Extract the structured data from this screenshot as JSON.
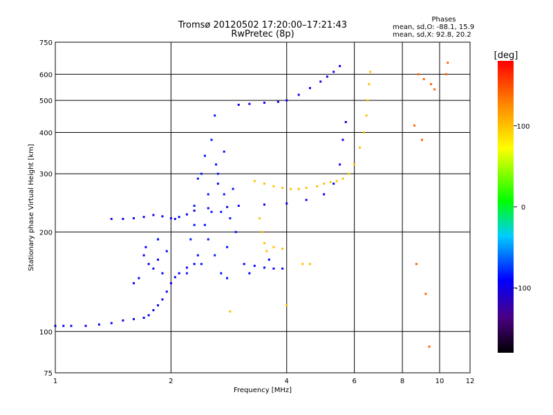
{
  "header": {
    "title_line1": "Tromsø 20120502 17:20:00–17:21:43",
    "title_line2": "RwPretec (8p)"
  },
  "stats": {
    "heading": "Phases",
    "line1": "mean, sd,O: -88.1, 15.9",
    "line2": "mean, sd,X:  92.8, 20.2"
  },
  "chart_data": {
    "type": "scatter",
    "title": "Tromsø 20120502 17:20:00–17:21:43",
    "subtitle": "RwPretec (8p)",
    "xlabel": "Frequency [MHz]",
    "ylabel": "Stationary phase Virtual Height [km]",
    "xscale": "log",
    "yscale": "log",
    "xlim": [
      1,
      12
    ],
    "ylim": [
      75,
      750
    ],
    "x_ticks": [
      1,
      2,
      4,
      6,
      8,
      10,
      12
    ],
    "y_ticks": [
      75,
      100,
      200,
      300,
      400,
      500,
      600,
      750
    ],
    "grid": true,
    "colorbar": {
      "label": "[deg]",
      "range": [
        -180,
        180
      ],
      "ticks": [
        100,
        0,
        -100
      ]
    },
    "series": [
      {
        "phase": -95,
        "points": [
          [
            1.0,
            104
          ],
          [
            1.05,
            104
          ],
          [
            1.1,
            104
          ],
          [
            1.2,
            104
          ],
          [
            1.3,
            105
          ],
          [
            1.4,
            106
          ],
          [
            1.5,
            108
          ],
          [
            1.6,
            109
          ],
          [
            1.7,
            110
          ],
          [
            1.75,
            112
          ],
          [
            1.8,
            116
          ],
          [
            1.85,
            120
          ],
          [
            1.9,
            125
          ],
          [
            1.95,
            132
          ],
          [
            2.0,
            140
          ],
          [
            2.05,
            146
          ],
          [
            2.1,
            150
          ],
          [
            2.2,
            156
          ],
          [
            2.3,
            160
          ]
        ]
      },
      {
        "phase": -95,
        "points": [
          [
            1.4,
            219
          ],
          [
            1.5,
            219
          ],
          [
            1.6,
            220
          ],
          [
            1.7,
            222
          ],
          [
            1.8,
            225
          ],
          [
            1.9,
            223
          ],
          [
            2.0,
            220
          ],
          [
            2.05,
            219
          ],
          [
            2.1,
            222
          ],
          [
            2.2,
            226
          ],
          [
            2.3,
            232
          ],
          [
            2.5,
            236
          ],
          [
            2.8,
            238
          ],
          [
            3.0,
            240
          ],
          [
            3.5,
            242
          ],
          [
            4.0,
            244
          ],
          [
            4.5,
            250
          ],
          [
            5.0,
            260
          ],
          [
            5.3,
            280
          ],
          [
            5.5,
            320
          ],
          [
            5.6,
            380
          ],
          [
            5.7,
            430
          ]
        ]
      },
      {
        "phase": -95,
        "points": [
          [
            3.0,
            485
          ],
          [
            3.2,
            488
          ],
          [
            3.5,
            492
          ],
          [
            3.8,
            495
          ],
          [
            4.0,
            500
          ],
          [
            4.3,
            520
          ],
          [
            4.6,
            545
          ],
          [
            4.9,
            570
          ],
          [
            5.1,
            590
          ],
          [
            5.3,
            610
          ],
          [
            5.5,
            635
          ]
        ]
      },
      {
        "phase": -85,
        "points": [
          [
            2.2,
            150
          ],
          [
            2.25,
            190
          ],
          [
            2.3,
            240
          ],
          [
            2.35,
            170
          ],
          [
            2.4,
            300
          ],
          [
            2.45,
            210
          ],
          [
            2.5,
            260
          ],
          [
            2.55,
            380
          ],
          [
            2.6,
            450
          ],
          [
            2.62,
            320
          ],
          [
            2.65,
            280
          ],
          [
            2.7,
            230
          ],
          [
            2.75,
            350
          ],
          [
            2.8,
            180
          ],
          [
            2.85,
            220
          ],
          [
            2.9,
            270
          ],
          [
            2.95,
            200
          ],
          [
            2.3,
            210
          ],
          [
            2.4,
            160
          ],
          [
            2.5,
            190
          ],
          [
            2.6,
            170
          ],
          [
            2.7,
            150
          ],
          [
            2.8,
            145
          ],
          [
            2.55,
            230
          ],
          [
            2.65,
            300
          ],
          [
            2.75,
            260
          ],
          [
            2.45,
            340
          ],
          [
            2.35,
            290
          ]
        ]
      },
      {
        "phase": -90,
        "points": [
          [
            1.75,
            160
          ],
          [
            1.8,
            155
          ],
          [
            1.85,
            165
          ],
          [
            1.9,
            150
          ],
          [
            1.7,
            170
          ],
          [
            1.65,
            145
          ],
          [
            1.6,
            140
          ],
          [
            1.95,
            175
          ],
          [
            1.72,
            180
          ],
          [
            1.85,
            190
          ]
        ]
      },
      {
        "phase": -90,
        "points": [
          [
            3.1,
            160
          ],
          [
            3.3,
            158
          ],
          [
            3.5,
            156
          ],
          [
            3.7,
            155
          ],
          [
            3.9,
            155
          ],
          [
            3.2,
            150
          ],
          [
            3.6,
            165
          ]
        ]
      },
      {
        "phase": 100,
        "points": [
          [
            3.3,
            285
          ],
          [
            3.5,
            280
          ],
          [
            3.7,
            275
          ],
          [
            3.9,
            272
          ],
          [
            4.1,
            270
          ],
          [
            4.3,
            270
          ],
          [
            4.5,
            272
          ],
          [
            4.8,
            275
          ],
          [
            5.0,
            280
          ],
          [
            5.2,
            283
          ],
          [
            5.4,
            285
          ],
          [
            5.6,
            290
          ],
          [
            5.8,
            300
          ],
          [
            6.0,
            320
          ],
          [
            6.2,
            360
          ],
          [
            6.35,
            400
          ],
          [
            6.45,
            450
          ],
          [
            6.5,
            500
          ],
          [
            6.55,
            560
          ],
          [
            6.6,
            610
          ]
        ]
      },
      {
        "phase": 100,
        "points": [
          [
            3.4,
            220
          ],
          [
            3.45,
            200
          ],
          [
            3.5,
            185
          ],
          [
            3.55,
            175
          ],
          [
            3.7,
            180
          ],
          [
            3.9,
            178
          ],
          [
            4.0,
            120
          ],
          [
            4.4,
            160
          ],
          [
            4.6,
            160
          ],
          [
            2.85,
            115
          ]
        ]
      },
      {
        "phase": 140,
        "points": [
          [
            8.8,
            600
          ],
          [
            9.1,
            580
          ],
          [
            9.5,
            560
          ],
          [
            9.7,
            540
          ],
          [
            10.4,
            600
          ],
          [
            10.5,
            650
          ],
          [
            8.6,
            420
          ],
          [
            9.0,
            380
          ],
          [
            9.2,
            130
          ],
          [
            9.4,
            90
          ],
          [
            8.7,
            160
          ]
        ]
      }
    ]
  }
}
